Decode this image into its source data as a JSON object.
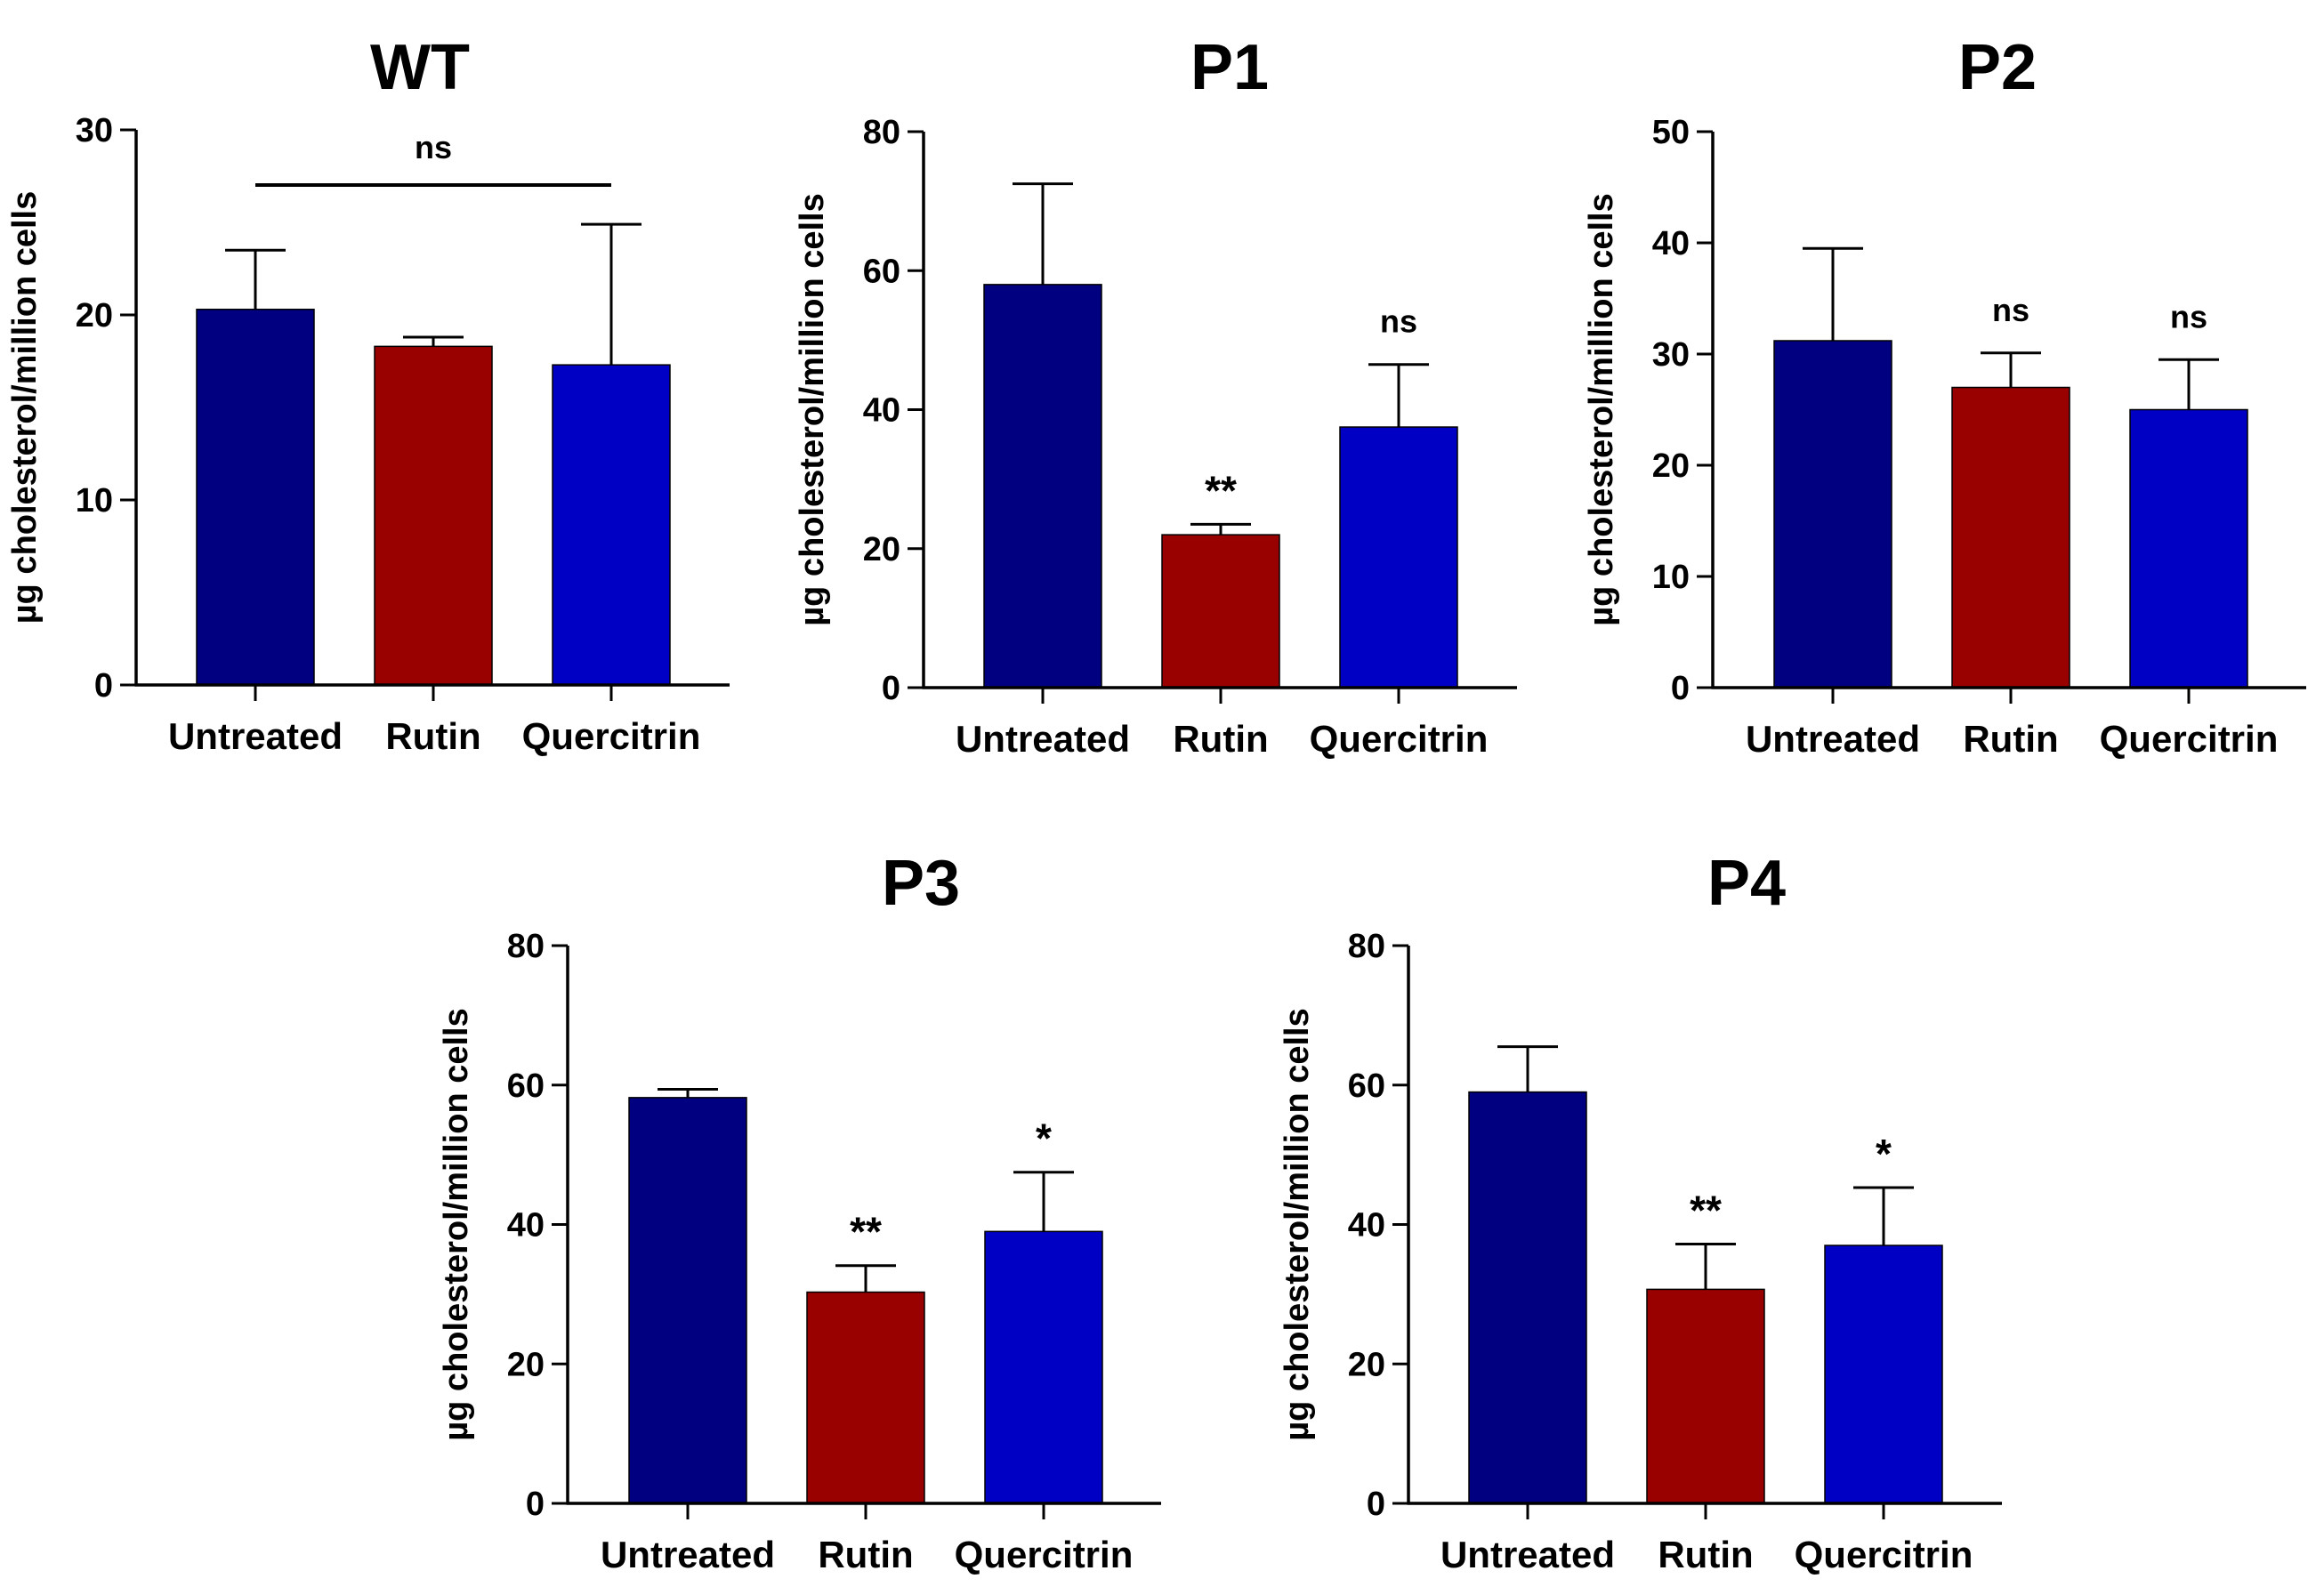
{
  "colors": {
    "Untreated": "#000080",
    "Rutin": "#990000",
    "Quercitrin": "#0000c4",
    "axis": "#000000"
  },
  "chart_data": [
    {
      "type": "bar",
      "title": "WT",
      "ylabel": "µg cholesterol/million cells",
      "categories": [
        "Untreated",
        "Rutin",
        "Quercitrin"
      ],
      "values": [
        20.3,
        18.3,
        17.3
      ],
      "errors": [
        3.2,
        0.5,
        7.6
      ],
      "ylim": [
        0,
        30
      ],
      "yticks": [
        "0",
        "10",
        "20",
        "30"
      ],
      "significance": [
        "",
        "",
        ""
      ],
      "comparison_bar": {
        "label": "ns",
        "from": "Untreated",
        "to": "Quercitrin"
      }
    },
    {
      "type": "bar",
      "title": "P1",
      "ylabel": "µg cholesterol/million cells",
      "categories": [
        "Untreated",
        "Rutin",
        "Quercitrin"
      ],
      "values": [
        58,
        22,
        37.5
      ],
      "errors": [
        14.5,
        1.5,
        9
      ],
      "ylim": [
        0,
        80
      ],
      "yticks": [
        "0",
        "20",
        "40",
        "60",
        "80"
      ],
      "significance": [
        "",
        "**",
        "ns"
      ]
    },
    {
      "type": "bar",
      "title": "P2",
      "ylabel": "µg cholesterol/million cells",
      "categories": [
        "Untreated",
        "Rutin",
        "Quercitrin"
      ],
      "values": [
        31.2,
        27,
        25
      ],
      "errors": [
        8.3,
        3.1,
        4.5
      ],
      "ylim": [
        0,
        50
      ],
      "yticks": [
        "0",
        "10",
        "20",
        "30",
        "40",
        "50"
      ],
      "significance": [
        "",
        "ns",
        "ns"
      ]
    },
    {
      "type": "bar",
      "title": "P3",
      "ylabel": "µg cholesterol/million cells",
      "categories": [
        "Untreated",
        "Rutin",
        "Quercitrin"
      ],
      "values": [
        58.2,
        30.3,
        39
      ],
      "errors": [
        1.2,
        3.8,
        8.5
      ],
      "ylim": [
        0,
        80
      ],
      "yticks": [
        "0",
        "20",
        "40",
        "60",
        "80"
      ],
      "significance": [
        "",
        "**",
        "*"
      ]
    },
    {
      "type": "bar",
      "title": "P4",
      "ylabel": "µg cholesterol/million cells",
      "categories": [
        "Untreated",
        "Rutin",
        "Quercitrin"
      ],
      "values": [
        59,
        30.7,
        37
      ],
      "errors": [
        6.5,
        6.5,
        8.3
      ],
      "ylim": [
        0,
        80
      ],
      "yticks": [
        "0",
        "20",
        "40",
        "60",
        "80"
      ],
      "significance": [
        "",
        "**",
        "*"
      ]
    }
  ]
}
